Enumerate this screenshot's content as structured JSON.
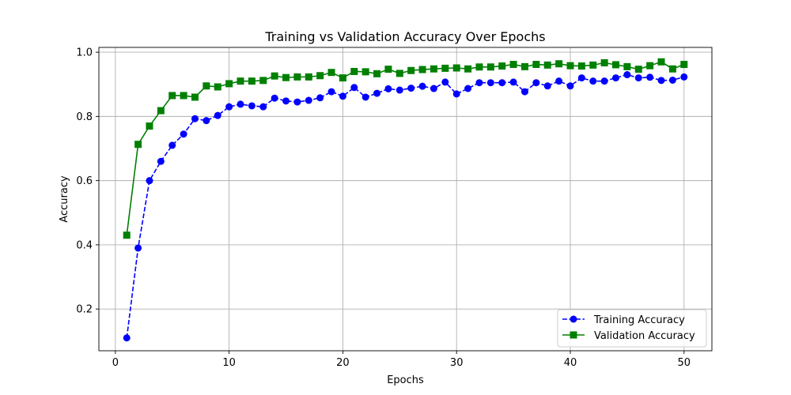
{
  "chart_data": {
    "type": "line",
    "title": "Training vs Validation Accuracy Over Epochs",
    "xlabel": "Epochs",
    "ylabel": "Accuracy",
    "xlim": [
      -1.45,
      52.45
    ],
    "ylim": [
      0.07,
      1.015
    ],
    "xticks": [
      0,
      10,
      20,
      30,
      40,
      50
    ],
    "yticks": [
      0.2,
      0.4,
      0.6,
      0.8,
      1.0
    ],
    "grid": true,
    "legend_position": "lower-right",
    "x": [
      1,
      2,
      3,
      4,
      5,
      6,
      7,
      8,
      9,
      10,
      11,
      12,
      13,
      14,
      15,
      16,
      17,
      18,
      19,
      20,
      21,
      22,
      23,
      24,
      25,
      26,
      27,
      28,
      29,
      30,
      31,
      32,
      33,
      34,
      35,
      36,
      37,
      38,
      39,
      40,
      41,
      42,
      43,
      44,
      45,
      46,
      47,
      48,
      49,
      50
    ],
    "series": [
      {
        "name": "Training Accuracy",
        "color": "#0000ff",
        "line_style": "dashed",
        "marker": "circle",
        "values": [
          0.11,
          0.39,
          0.6,
          0.66,
          0.71,
          0.745,
          0.793,
          0.787,
          0.803,
          0.83,
          0.838,
          0.833,
          0.83,
          0.857,
          0.848,
          0.845,
          0.85,
          0.858,
          0.877,
          0.863,
          0.89,
          0.86,
          0.872,
          0.886,
          0.882,
          0.888,
          0.894,
          0.887,
          0.907,
          0.87,
          0.887,
          0.905,
          0.905,
          0.905,
          0.907,
          0.877,
          0.905,
          0.895,
          0.91,
          0.895,
          0.92,
          0.91,
          0.91,
          0.92,
          0.93,
          0.92,
          0.922,
          0.912,
          0.913,
          0.923
        ]
      },
      {
        "name": "Validation Accuracy",
        "color": "#008000",
        "line_style": "solid",
        "marker": "square",
        "values": [
          0.43,
          0.713,
          0.77,
          0.818,
          0.865,
          0.865,
          0.86,
          0.895,
          0.892,
          0.902,
          0.91,
          0.91,
          0.912,
          0.926,
          0.921,
          0.923,
          0.923,
          0.927,
          0.937,
          0.92,
          0.94,
          0.939,
          0.933,
          0.947,
          0.934,
          0.943,
          0.946,
          0.948,
          0.95,
          0.951,
          0.948,
          0.954,
          0.954,
          0.957,
          0.962,
          0.955,
          0.962,
          0.96,
          0.964,
          0.958,
          0.957,
          0.96,
          0.967,
          0.961,
          0.955,
          0.947,
          0.958,
          0.97,
          0.948,
          0.962
        ]
      }
    ]
  }
}
